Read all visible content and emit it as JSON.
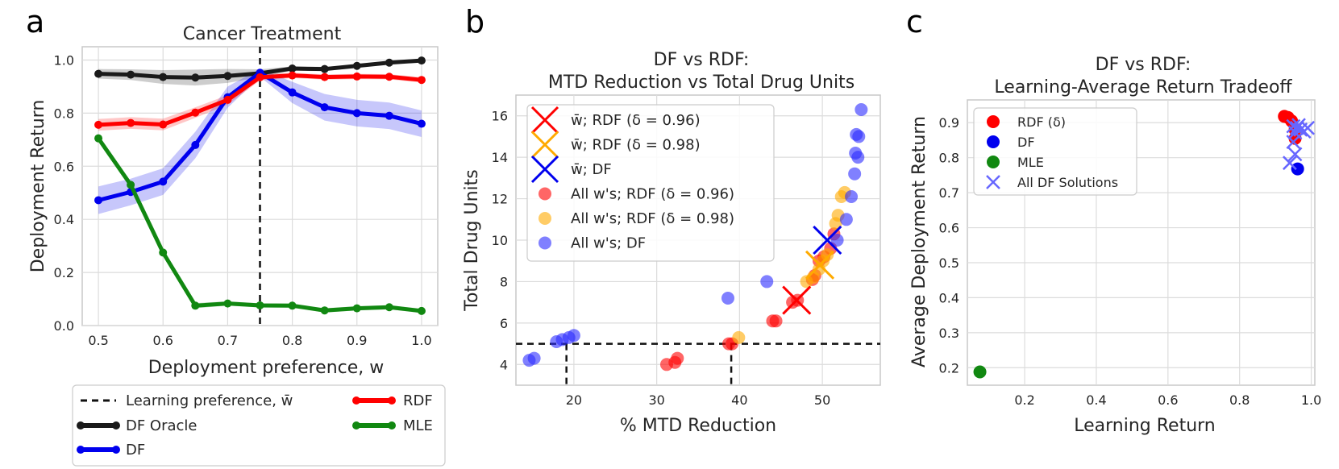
{
  "panel_labels": [
    "a",
    "b",
    "c"
  ],
  "colors": {
    "black": "#1a1a1a",
    "blue": "#0000ee",
    "red": "#ff0000",
    "green": "#118811",
    "orange": "#ffaa00",
    "blue_soft": "#2b2bff"
  },
  "chart_data": [
    {
      "type": "line",
      "title": "Cancer Treatment",
      "xlabel": "Deployment preference, w",
      "ylabel": "Deployment Return",
      "xlim": [
        0.475,
        1.025
      ],
      "ylim": [
        0.0,
        1.05
      ],
      "xticks": [
        "0.5",
        "0.6",
        "0.7",
        "0.8",
        "0.9",
        "1.0"
      ],
      "yticks": [
        "0.0",
        "0.2",
        "0.4",
        "0.6",
        "0.8",
        "1.0"
      ],
      "x": [
        0.5,
        0.55,
        0.6,
        0.65,
        0.7,
        0.75,
        0.8,
        0.85,
        0.9,
        0.95,
        1.0
      ],
      "vline": {
        "x": 0.75,
        "label": "Learning preference, w̄"
      },
      "series": [
        {
          "name": "DF Oracle",
          "color": "#1a1a1a",
          "values": [
            0.948,
            0.945,
            0.936,
            0.934,
            0.94,
            0.95,
            0.968,
            0.966,
            0.978,
            0.99,
            0.998
          ],
          "band": [
            0.018,
            0.02,
            0.026,
            0.03,
            0.026,
            0.015,
            0.008,
            0.008,
            0.006,
            0.005,
            0.004
          ]
        },
        {
          "name": "DF",
          "color": "#0000ee",
          "values": [
            0.472,
            0.503,
            0.542,
            0.68,
            0.86,
            0.952,
            0.878,
            0.822,
            0.8,
            0.79,
            0.76
          ],
          "band": [
            0.052,
            0.05,
            0.05,
            0.05,
            0.04,
            0.015,
            0.04,
            0.05,
            0.05,
            0.05,
            0.05
          ]
        },
        {
          "name": "RDF",
          "color": "#ff0000",
          "values": [
            0.756,
            0.763,
            0.757,
            0.802,
            0.85,
            0.935,
            0.942,
            0.936,
            0.938,
            0.937,
            0.925
          ],
          "band": [
            0.022,
            0.022,
            0.022,
            0.02,
            0.018,
            0.012,
            0.01,
            0.01,
            0.01,
            0.01,
            0.01
          ]
        },
        {
          "name": "MLE",
          "color": "#118811",
          "values": [
            0.705,
            0.53,
            0.275,
            0.075,
            0.083,
            0.076,
            0.075,
            0.057,
            0.065,
            0.069,
            0.055
          ],
          "band": [
            0.008,
            0.01,
            0.01,
            0.01,
            0.008,
            0.008,
            0.008,
            0.008,
            0.008,
            0.008,
            0.008
          ]
        }
      ],
      "legend": {
        "position": "below",
        "entries": [
          "Learning preference, w̄",
          "DF Oracle",
          "DF",
          "RDF",
          "MLE"
        ]
      }
    },
    {
      "type": "scatter",
      "title_lines": [
        "DF vs RDF:",
        "MTD Reduction vs Total Drug Units"
      ],
      "xlabel": "% MTD Reduction",
      "ylabel": "Total Drug Units",
      "xlim": [
        13,
        57
      ],
      "ylim": [
        3,
        17
      ],
      "xticks": [
        20,
        30,
        40,
        50
      ],
      "yticks": [
        4,
        6,
        8,
        10,
        12,
        14,
        16
      ],
      "hline_y": 5,
      "vlines_x": [
        19.1,
        39.0
      ],
      "series": [
        {
          "name": "All w's; RDF (δ = 0.96)",
          "color": "#ff0000",
          "marker": "dot",
          "points": [
            [
              31.2,
              4.0
            ],
            [
              32.2,
              4.1
            ],
            [
              32.5,
              4.3
            ],
            [
              38.7,
              5.0
            ],
            [
              39.1,
              5.0
            ],
            [
              44.0,
              6.1
            ],
            [
              44.4,
              6.1
            ],
            [
              46.4,
              7.0
            ],
            [
              47.0,
              7.1
            ],
            [
              48.8,
              8.1
            ],
            [
              49.1,
              8.3
            ],
            [
              49.6,
              9.0
            ],
            [
              50.2,
              9.2
            ],
            [
              51.0,
              9.6
            ],
            [
              51.4,
              10.3
            ]
          ]
        },
        {
          "name": "All w's; RDF (δ = 0.98)",
          "color": "#ffaa00",
          "marker": "dot",
          "points": [
            [
              39.9,
              5.3
            ],
            [
              48.1,
              8.0
            ],
            [
              48.9,
              8.2
            ],
            [
              49.6,
              8.6
            ],
            [
              50.1,
              9.0
            ],
            [
              50.6,
              9.3
            ],
            [
              51.6,
              10.8
            ],
            [
              51.9,
              11.2
            ],
            [
              52.3,
              12.1
            ],
            [
              52.7,
              12.3
            ]
          ]
        },
        {
          "name": "All w's; DF",
          "color": "#2b2bff",
          "marker": "dot",
          "points": [
            [
              14.6,
              4.2
            ],
            [
              15.2,
              4.3
            ],
            [
              17.9,
              5.1
            ],
            [
              18.6,
              5.2
            ],
            [
              19.4,
              5.3
            ],
            [
              20.0,
              5.4
            ],
            [
              38.6,
              7.2
            ],
            [
              43.3,
              8.0
            ],
            [
              51.8,
              10.0
            ],
            [
              52.9,
              11.0
            ],
            [
              53.5,
              12.1
            ],
            [
              53.9,
              13.2
            ],
            [
              54.0,
              14.2
            ],
            [
              54.3,
              14.0
            ],
            [
              54.1,
              15.1
            ],
            [
              54.4,
              15.0
            ],
            [
              54.7,
              16.3
            ]
          ]
        },
        {
          "name": "w̄; RDF (δ = 0.96)",
          "color": "#ff0000",
          "marker": "x",
          "points": [
            [
              46.9,
              7.1
            ]
          ]
        },
        {
          "name": "w̄; RDF (δ = 0.98)",
          "color": "#ffaa00",
          "marker": "x",
          "points": [
            [
              49.7,
              8.8
            ]
          ]
        },
        {
          "name": "w̄; DF",
          "color": "#0000ee",
          "marker": "x",
          "points": [
            [
              50.6,
              10.0
            ]
          ]
        }
      ],
      "legend": {
        "position": "upper-left",
        "entries": [
          "w̄; RDF (δ = 0.96)",
          "w̄; RDF (δ = 0.98)",
          "w̄; DF",
          "All w's; RDF (δ = 0.96)",
          "All w's; RDF (δ = 0.98)",
          "All w's; DF"
        ]
      }
    },
    {
      "type": "scatter",
      "title_lines": [
        "DF vs RDF:",
        "Learning-Average Return Tradeoff"
      ],
      "xlabel": "Learning Return",
      "ylabel": "Average Deployment Return",
      "xlim": [
        0.04,
        1.01
      ],
      "ylim": [
        0.15,
        0.965
      ],
      "xticks": [
        "0.2",
        "0.4",
        "0.6",
        "0.8",
        "1.0"
      ],
      "yticks": [
        "0.2",
        "0.3",
        "0.4",
        "0.5",
        "0.6",
        "0.7",
        "0.8",
        "0.9"
      ],
      "series": [
        {
          "name": "RDF (δ)",
          "color": "#ff0000",
          "marker": "dot",
          "points": [
            [
              0.925,
              0.918
            ],
            [
              0.935,
              0.915
            ],
            [
              0.945,
              0.905
            ],
            [
              0.955,
              0.88
            ],
            [
              0.955,
              0.855
            ]
          ]
        },
        {
          "name": "DF",
          "color": "#0000ee",
          "marker": "dot",
          "points": [
            [
              0.962,
              0.768
            ]
          ]
        },
        {
          "name": "MLE",
          "color": "#118811",
          "marker": "dot",
          "points": [
            [
              0.075,
              0.188
            ]
          ]
        },
        {
          "name": "All DF Solutions",
          "color": "#6666ff",
          "marker": "x",
          "points": [
            [
              0.94,
              0.785
            ],
            [
              0.955,
              0.81
            ],
            [
              0.95,
              0.845
            ],
            [
              0.955,
              0.872
            ],
            [
              0.96,
              0.885
            ],
            [
              0.97,
              0.88
            ],
            [
              0.98,
              0.875
            ],
            [
              0.99,
              0.885
            ],
            [
              0.95,
              0.89
            ],
            [
              0.965,
              0.893
            ]
          ]
        }
      ],
      "legend": {
        "position": "upper-left",
        "entries": [
          "RDF (δ)",
          "DF",
          "MLE",
          "All DF Solutions"
        ]
      }
    }
  ]
}
